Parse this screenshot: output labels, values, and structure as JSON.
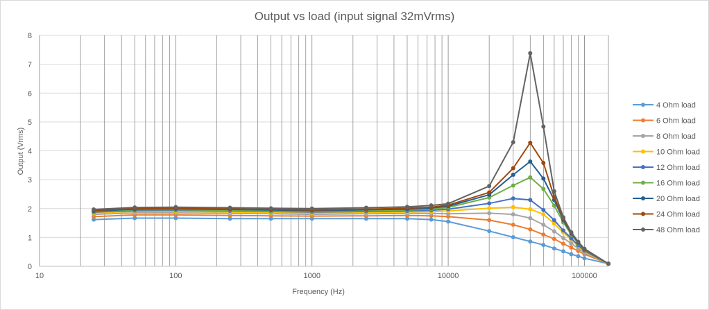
{
  "chart_data": {
    "type": "line",
    "title": "Output vs load (input signal 32mVrms)",
    "xlabel": "Frequency (Hz)",
    "ylabel": "Output (Vrms)",
    "xscale": "log",
    "xlim": [
      10,
      150000
    ],
    "ylim": [
      0,
      8
    ],
    "xticks": [
      10,
      100,
      1000,
      10000,
      100000
    ],
    "xtick_labels": [
      "10",
      "100",
      "1000",
      "10000",
      "100000"
    ],
    "yticks": [
      0,
      1,
      2,
      3,
      4,
      5,
      6,
      7,
      8
    ],
    "ytick_labels": [
      "0",
      "1",
      "2",
      "3",
      "4",
      "5",
      "6",
      "7",
      "8"
    ],
    "grid": true,
    "legend_position": "right",
    "x": [
      25,
      50,
      100,
      250,
      500,
      1000,
      2500,
      5000,
      7500,
      10000,
      20000,
      30000,
      40000,
      50000,
      60000,
      70000,
      80000,
      90000,
      100000,
      150000
    ],
    "series": [
      {
        "name": "4 Ohm load",
        "color": "#5b9bd5",
        "values": [
          1.62,
          1.67,
          1.67,
          1.65,
          1.65,
          1.65,
          1.65,
          1.65,
          1.62,
          1.55,
          1.22,
          1.01,
          0.86,
          0.74,
          0.62,
          0.52,
          0.42,
          0.35,
          0.28,
          0.09
        ]
      },
      {
        "name": "6 Ohm load",
        "color": "#ed7d31",
        "values": [
          1.72,
          1.78,
          1.78,
          1.76,
          1.75,
          1.74,
          1.75,
          1.76,
          1.75,
          1.72,
          1.6,
          1.44,
          1.28,
          1.1,
          0.95,
          0.78,
          0.65,
          0.53,
          0.42,
          0.09
        ]
      },
      {
        "name": "8 Ohm load",
        "color": "#a5a5a5",
        "values": [
          1.8,
          1.85,
          1.85,
          1.83,
          1.82,
          1.8,
          1.82,
          1.83,
          1.83,
          1.82,
          1.84,
          1.8,
          1.67,
          1.44,
          1.21,
          0.98,
          0.79,
          0.62,
          0.47,
          0.09
        ]
      },
      {
        "name": "10 Ohm load",
        "color": "#ffc000",
        "values": [
          1.85,
          1.9,
          1.9,
          1.88,
          1.86,
          1.85,
          1.87,
          1.88,
          1.89,
          1.92,
          2.01,
          2.05,
          1.98,
          1.8,
          1.48,
          1.17,
          0.92,
          0.7,
          0.52,
          0.09
        ]
      },
      {
        "name": "12 Ohm load",
        "color": "#4472c4",
        "values": [
          1.88,
          1.93,
          1.94,
          1.92,
          1.9,
          1.88,
          1.9,
          1.92,
          1.94,
          1.98,
          2.18,
          2.35,
          2.3,
          1.95,
          1.6,
          1.24,
          0.97,
          0.73,
          0.54,
          0.09
        ]
      },
      {
        "name": "16 Ohm load",
        "color": "#70ad47",
        "values": [
          1.9,
          1.96,
          1.96,
          1.94,
          1.92,
          1.9,
          1.93,
          1.95,
          1.98,
          2.04,
          2.38,
          2.8,
          3.08,
          2.68,
          2.1,
          1.52,
          1.1,
          0.8,
          0.58,
          0.09
        ]
      },
      {
        "name": "20 Ohm load",
        "color": "#255e91",
        "values": [
          1.92,
          1.98,
          1.99,
          1.97,
          1.95,
          1.93,
          1.96,
          1.98,
          2.02,
          2.08,
          2.48,
          3.17,
          3.63,
          3.04,
          2.3,
          1.6,
          1.14,
          0.82,
          0.59,
          0.09
        ]
      },
      {
        "name": "24 Ohm load",
        "color": "#9e480e",
        "values": [
          1.94,
          2.0,
          2.01,
          1.99,
          1.97,
          1.95,
          1.98,
          2.01,
          2.05,
          2.12,
          2.56,
          3.4,
          4.28,
          3.58,
          2.4,
          1.65,
          1.16,
          0.84,
          0.6,
          0.09
        ]
      },
      {
        "name": "48 Ohm load",
        "color": "#636363",
        "values": [
          1.97,
          2.04,
          2.05,
          2.03,
          2.01,
          2.0,
          2.03,
          2.06,
          2.11,
          2.17,
          2.78,
          4.3,
          7.38,
          4.84,
          2.6,
          1.7,
          1.18,
          0.85,
          0.61,
          0.09
        ]
      }
    ]
  }
}
